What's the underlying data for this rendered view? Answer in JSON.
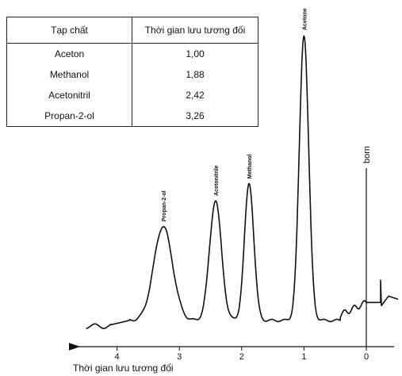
{
  "table": {
    "headers": [
      "Tạp chất",
      "Thời gian lưu tương đối"
    ],
    "rows": [
      [
        "Aceton",
        "1,00"
      ],
      [
        "Methanol",
        "1,88"
      ],
      [
        "Acetonitril",
        "2,42"
      ],
      [
        "Propan-2-ol",
        "3,26"
      ]
    ]
  },
  "chart_data": {
    "type": "line",
    "title": "",
    "xlabel": "Thời gian lưu tương đối",
    "ylabel": "",
    "x_reversed": true,
    "xlim": [
      -0.5,
      4.5
    ],
    "xticks": [
      4,
      3,
      2,
      1,
      0
    ],
    "xtick_labels": [
      "4",
      "3",
      "2",
      "1",
      "0"
    ],
    "peaks": [
      {
        "label": "Acetone",
        "x": 1.0,
        "height": 1.0
      },
      {
        "label": "Methanol",
        "x": 1.88,
        "height": 0.48
      },
      {
        "label": "Acetonitrile",
        "x": 2.42,
        "height": 0.42
      },
      {
        "label": "Propan-2-ol",
        "x": 3.26,
        "height": 0.33
      }
    ],
    "marker": {
      "label": "born",
      "x": 0
    }
  }
}
